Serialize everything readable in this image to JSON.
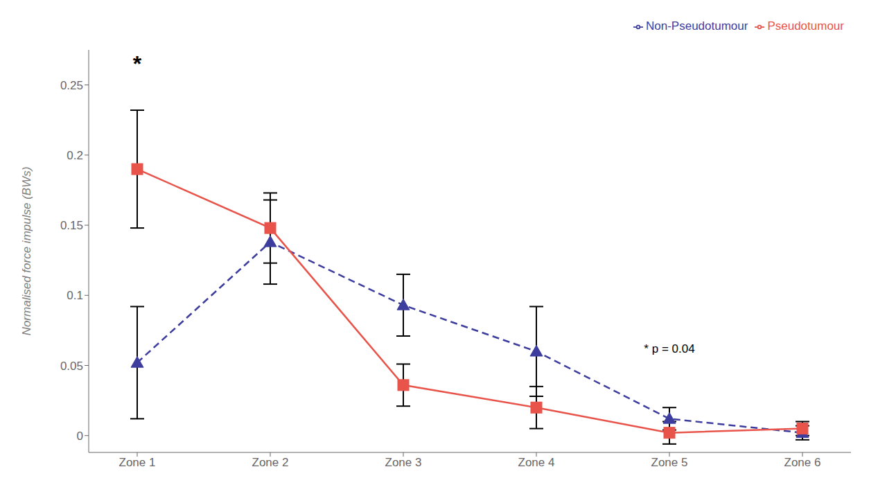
{
  "chart_data": {
    "type": "line",
    "y_label": "Normalised force impulse (BWs)",
    "categories": [
      "Zone 1",
      "Zone 2",
      "Zone 3",
      "Zone 4",
      "Zone 5",
      "Zone 6"
    ],
    "series": [
      {
        "name": "Non-Pseudotumour",
        "color": "#3D3D9E",
        "line_style": "dashed",
        "marker": "triangle",
        "values": [
          0.052,
          0.138,
          0.093,
          0.06,
          0.012,
          0.002
        ],
        "errors": [
          0.04,
          0.03,
          0.022,
          0.032,
          0.008,
          0.005
        ]
      },
      {
        "name": "Pseudotumour",
        "color": "#E8534A",
        "line_style": "solid",
        "marker": "square",
        "values": [
          0.19,
          0.148,
          0.036,
          0.02,
          0.002,
          0.005
        ],
        "errors": [
          0.042,
          0.025,
          0.015,
          0.015,
          0.008,
          0.005
        ]
      }
    ],
    "ylim": [
      -0.012,
      0.275
    ],
    "yticks": [
      0,
      0.05,
      0.1,
      0.15,
      0.2,
      0.25
    ],
    "grid": false,
    "legend": "upper right",
    "annotations": [
      {
        "text": "*",
        "x": "Zone 1",
        "y": 0.265,
        "bold": true
      },
      {
        "text": "* p = 0.04",
        "x": "Zone 5",
        "y": 0.062
      }
    ]
  }
}
